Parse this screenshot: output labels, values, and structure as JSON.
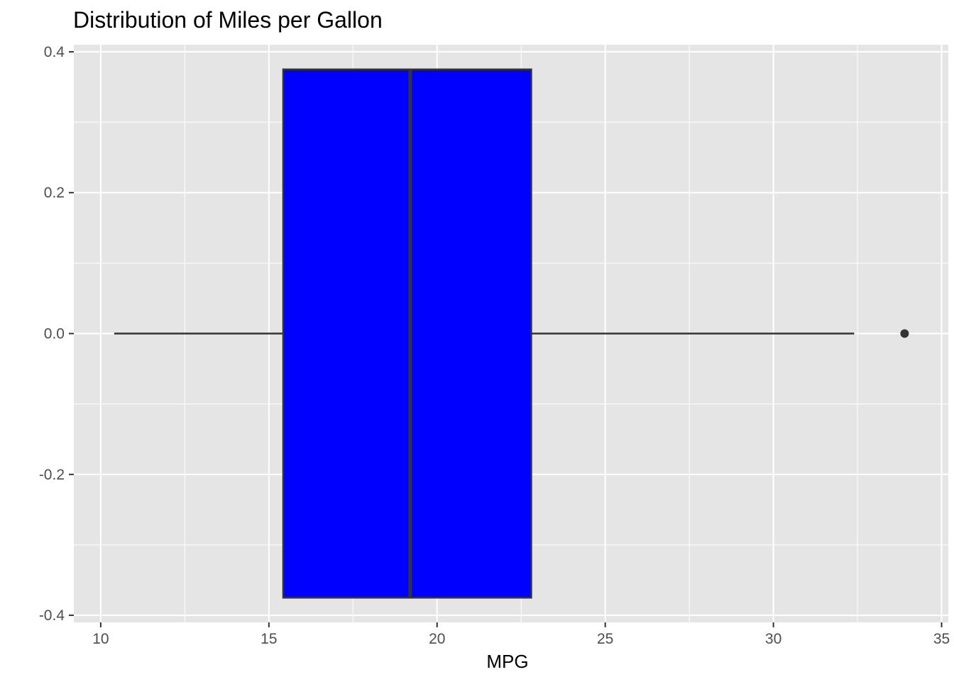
{
  "chart_data": {
    "type": "boxplot",
    "title": "Distribution of Miles per Gallon",
    "xlabel": "MPG",
    "ylabel": "",
    "xlim": [
      9.2,
      35.2
    ],
    "ylim": [
      -0.41,
      0.41
    ],
    "x_ticks": [
      10,
      15,
      20,
      25,
      30,
      35
    ],
    "x_tick_labels": [
      "10",
      "15",
      "20",
      "25",
      "30",
      "35"
    ],
    "y_ticks": [
      0.4,
      0.2,
      0.0,
      -0.2,
      -0.4
    ],
    "y_tick_labels": [
      "0.4",
      "0.2",
      "0.0",
      "-0.2",
      "-0.4"
    ],
    "grid": true,
    "box": {
      "y_center": 0.0,
      "y_half_width": 0.375,
      "whisker_low": 10.4,
      "q1": 15.425,
      "median": 19.2,
      "q3": 22.8,
      "whisker_high": 32.4,
      "outliers": [
        33.9
      ]
    },
    "colors": {
      "box_fill": "#0000ff",
      "box_outline": "#333333",
      "panel_background": "#e5e5e5",
      "grid": "#ffffff",
      "point": "#333333"
    }
  }
}
